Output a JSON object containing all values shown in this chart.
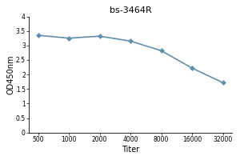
{
  "title": "bs-3464R",
  "xlabel": "Titer",
  "ylabel": "OD450nm",
  "x_labels": [
    "500",
    "1000",
    "2000",
    "4000",
    "8000",
    "16000",
    "32000"
  ],
  "x_positions": [
    0,
    1,
    2,
    3,
    4,
    5,
    6
  ],
  "y_values": [
    3.35,
    3.25,
    3.32,
    3.15,
    2.82,
    2.22,
    1.72
  ],
  "ylim": [
    0,
    4
  ],
  "yticks": [
    0,
    0.5,
    1.0,
    1.5,
    2.0,
    2.5,
    3.0,
    3.5,
    4.0
  ],
  "ytick_labels": [
    "0",
    "0.5",
    "1",
    "1.5",
    "2",
    "2.5",
    "3",
    "3.5",
    "4"
  ],
  "line_color": "#6090b0",
  "marker": "D",
  "marker_size": 3,
  "line_width": 1.2,
  "title_fontsize": 8,
  "label_fontsize": 7,
  "tick_fontsize": 5.5,
  "background_color": "#ffffff"
}
